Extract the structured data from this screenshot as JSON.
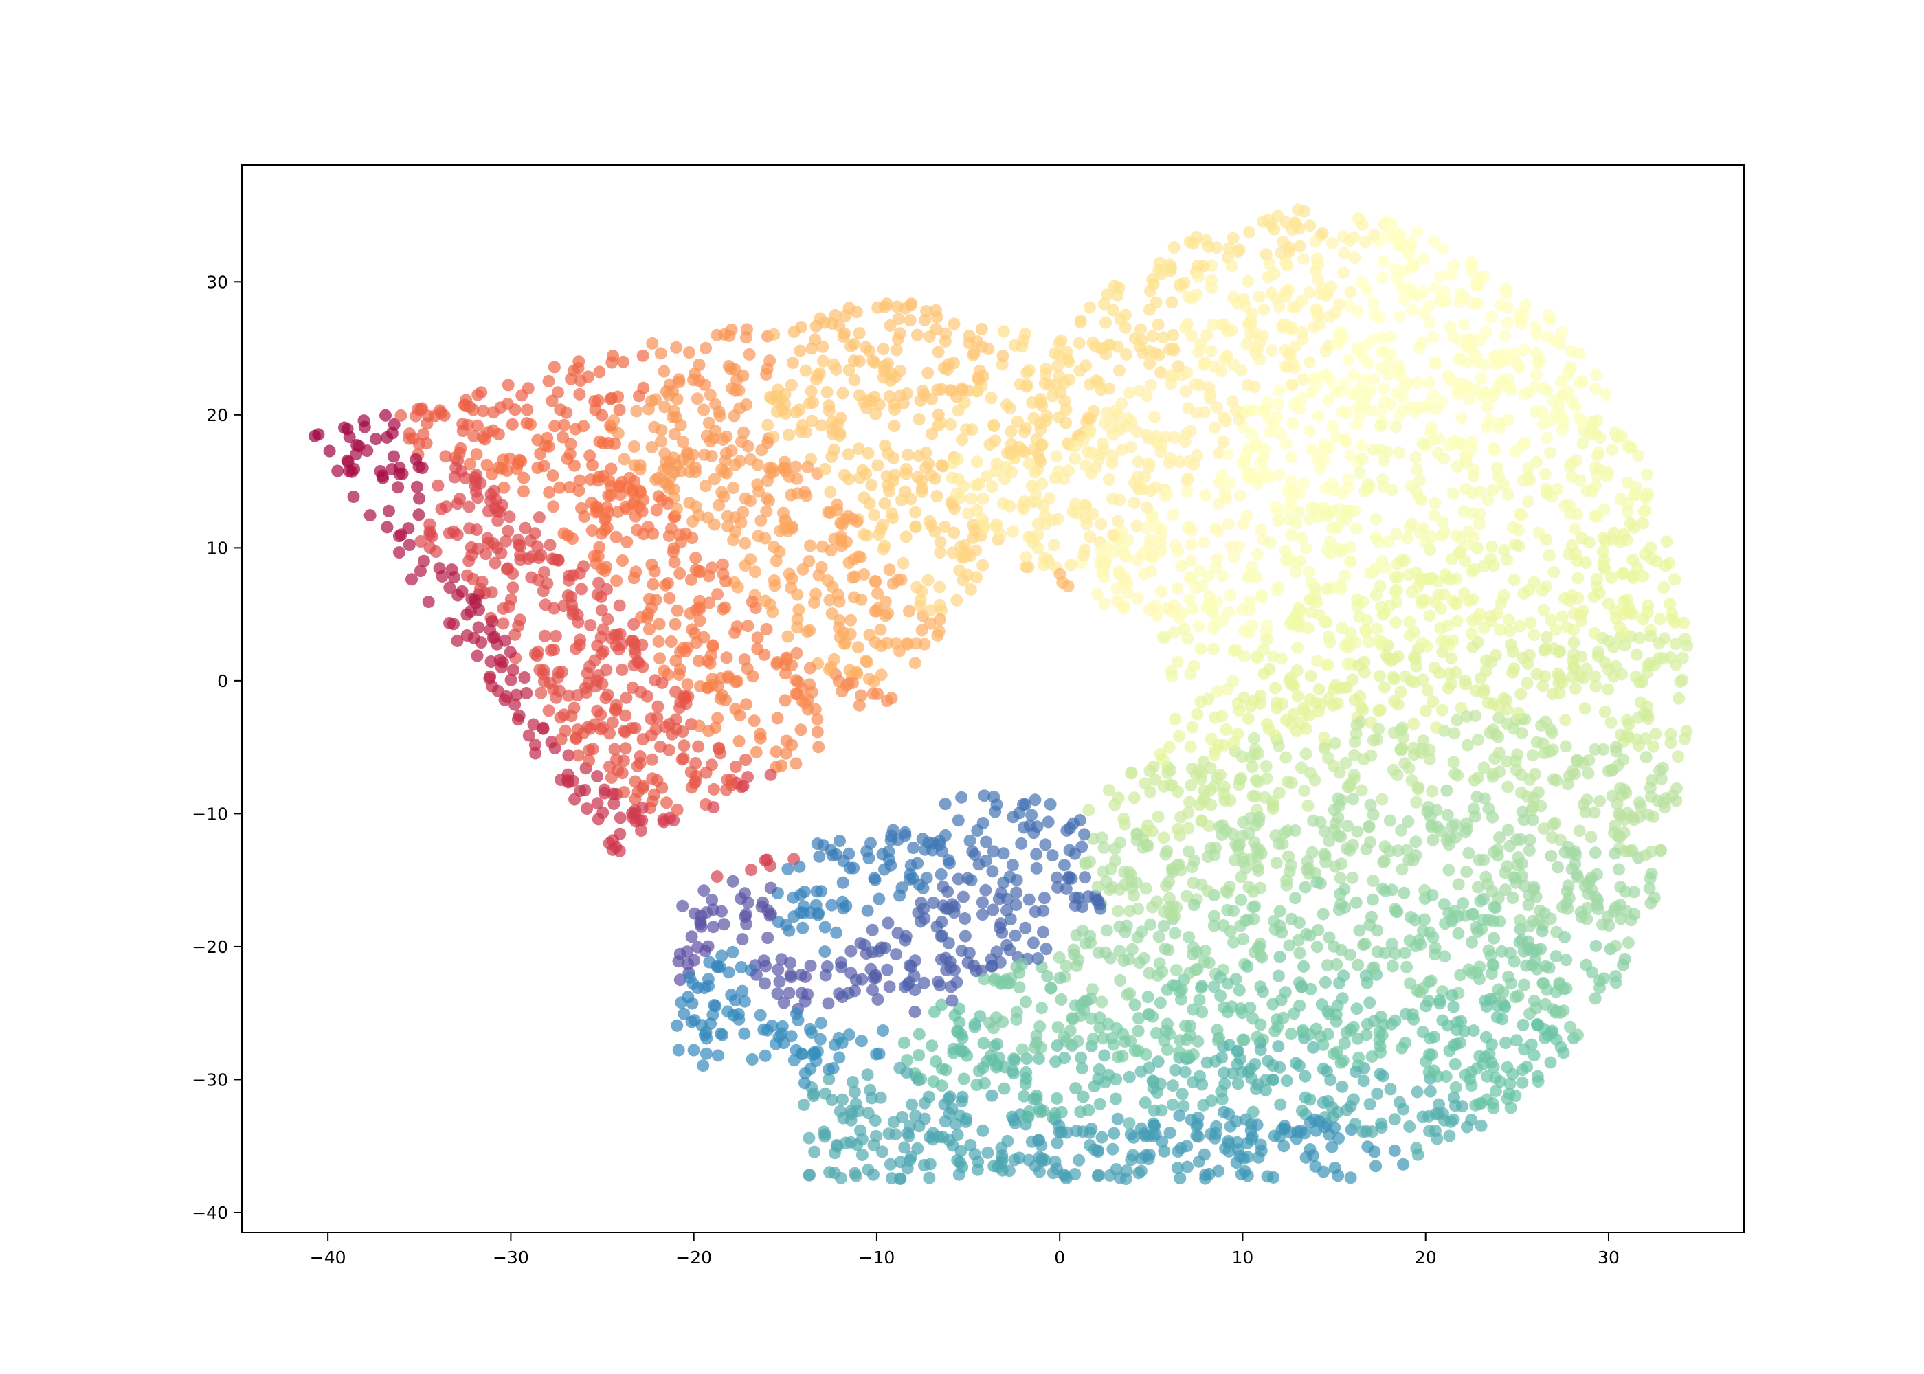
{
  "chart_data": {
    "type": "scatter",
    "title": "",
    "xlabel": "",
    "ylabel": "",
    "xlim": [
      -44.7,
      37.4
    ],
    "ylim": [
      -41.5,
      38.8
    ],
    "xticks": [
      -40,
      -30,
      -20,
      -10,
      0,
      10,
      20,
      30
    ],
    "yticks": [
      -40,
      -30,
      -20,
      -10,
      0,
      10,
      20,
      30
    ],
    "xtick_labels": [
      "−40",
      "−30",
      "−20",
      "−10",
      "0",
      "10",
      "20",
      "30"
    ],
    "ytick_labels": [
      "−40",
      "−30",
      "−20",
      "−10",
      "0",
      "10",
      "20",
      "30"
    ],
    "grid": false,
    "legend": "none",
    "marker_alpha": 0.7,
    "colormap": "Spectral",
    "colormap_stops": [
      "#9e0142",
      "#d53e4f",
      "#f46d43",
      "#fdae61",
      "#fee08b",
      "#ffffbf",
      "#e6f598",
      "#abdda4",
      "#66c2a5",
      "#3288bd",
      "#5e4fa2"
    ],
    "point_count": 5000,
    "point_regions_note_omitted": true,
    "series": [
      {
        "values_by_color_order": [
          [
            -40.5,
            18.5
          ],
          [
            -38.5,
            19.5
          ],
          [
            -39.0,
            16.0
          ],
          [
            -37.0,
            13.0
          ],
          [
            -38.0,
            10.0
          ],
          [
            -35.5,
            6.0
          ],
          [
            -34.5,
            2.0
          ],
          [
            -33.0,
            -2.0
          ],
          [
            -31.5,
            -6.0
          ],
          [
            -29.0,
            -9.0
          ],
          [
            -26.5,
            -11.5
          ],
          [
            -24.0,
            -14.0
          ],
          [
            -21.5,
            -13.0
          ],
          [
            -18.5,
            -12.0
          ],
          [
            -16.0,
            -9.5
          ],
          [
            -33.0,
            12.0
          ],
          [
            -30.0,
            10.0
          ],
          [
            -27.0,
            6.0
          ],
          [
            -25.0,
            2.0
          ],
          [
            -23.0,
            -3.0
          ],
          [
            -20.0,
            -7.0
          ],
          [
            -35.0,
            21.0
          ],
          [
            -31.0,
            22.0
          ],
          [
            -27.5,
            23.5
          ],
          [
            -24.0,
            25.0
          ],
          [
            -28.0,
            16.0
          ],
          [
            -25.0,
            12.0
          ],
          [
            -22.0,
            8.0
          ],
          [
            -19.5,
            3.0
          ],
          [
            -17.0,
            -2.0
          ],
          [
            -14.0,
            -5.0
          ],
          [
            -12.0,
            -3.0
          ],
          [
            -21.0,
            25.5
          ],
          [
            -18.0,
            27.0
          ],
          [
            -20.0,
            18.0
          ],
          [
            -17.0,
            14.0
          ],
          [
            -14.5,
            10.0
          ],
          [
            -11.5,
            6.0
          ],
          [
            -9.0,
            2.0
          ],
          [
            -6.0,
            1.0
          ],
          [
            -2.0,
            5.0
          ],
          [
            -15.0,
            28.0
          ],
          [
            -12.0,
            28.5
          ],
          [
            -9.0,
            27.0
          ],
          [
            -7.0,
            24.0
          ],
          [
            -12.0,
            20.0
          ],
          [
            -9.0,
            16.0
          ],
          [
            -7.0,
            12.0
          ],
          [
            -5.0,
            8.0
          ],
          [
            -2.5,
            20.0
          ],
          [
            1.0,
            25.0
          ],
          [
            3.0,
            29.0
          ],
          [
            6.0,
            33.0
          ],
          [
            9.0,
            34.0
          ],
          [
            -4.0,
            14.0
          ],
          [
            0.0,
            12.0
          ],
          [
            3.0,
            15.0
          ],
          [
            6.0,
            18.0
          ],
          [
            10.0,
            29.0
          ],
          [
            14.0,
            28.0
          ],
          [
            4.0,
            8.0
          ],
          [
            8.0,
            12.0
          ],
          [
            12.0,
            16.0
          ],
          [
            17.0,
            27.0
          ],
          [
            21.0,
            24.0
          ],
          [
            24.0,
            20.0
          ],
          [
            10.0,
            6.0
          ],
          [
            15.0,
            10.0
          ],
          [
            20.0,
            14.0
          ],
          [
            27.0,
            15.0
          ],
          [
            8.0,
            1.0
          ],
          [
            14.0,
            4.0
          ],
          [
            20.0,
            6.0
          ],
          [
            26.0,
            7.0
          ],
          [
            31.0,
            7.0
          ],
          [
            7.0,
            -3.0
          ],
          [
            13.0,
            -2.0
          ],
          [
            19.0,
            -1.0
          ],
          [
            25.0,
            0.0
          ],
          [
            32.0,
            0.0
          ],
          [
            34.0,
            -1.5
          ],
          [
            7.0,
            -9.0
          ],
          [
            12.0,
            -7.0
          ],
          [
            18.0,
            -6.0
          ],
          [
            24.0,
            -5.0
          ],
          [
            30.0,
            -9.0
          ],
          [
            5.0,
            -15.0
          ],
          [
            10.0,
            -13.0
          ],
          [
            16.0,
            -12.0
          ],
          [
            22.0,
            -12.0
          ],
          [
            28.0,
            -16.0
          ],
          [
            3.0,
            -21.0
          ],
          [
            9.0,
            -19.0
          ],
          [
            15.0,
            -18.0
          ],
          [
            21.0,
            -20.0
          ],
          [
            26.0,
            -22.0
          ],
          [
            -1.0,
            -25.0
          ],
          [
            5.0,
            -26.0
          ],
          [
            11.0,
            -24.0
          ],
          [
            17.0,
            -26.0
          ],
          [
            23.0,
            -27.0
          ],
          [
            -6.0,
            -28.0
          ],
          [
            0.0,
            -30.0
          ],
          [
            6.0,
            -31.0
          ],
          [
            12.0,
            -30.0
          ],
          [
            17.0,
            -32.0
          ],
          [
            -10.0,
            -31.0
          ],
          [
            -5.0,
            -34.0
          ],
          [
            1.0,
            -35.5
          ],
          [
            7.0,
            -34.0
          ],
          [
            11.0,
            -37.0
          ],
          [
            15.0,
            -35.5
          ],
          [
            -12.0,
            -27.0
          ],
          [
            -16.0,
            -26.0
          ],
          [
            -19.0,
            -22.0
          ],
          [
            -14.0,
            -18.0
          ],
          [
            -10.0,
            -14.0
          ],
          [
            -7.0,
            -12.0
          ],
          [
            -4.0,
            -9.5
          ],
          [
            -3.0,
            -13.0
          ],
          [
            -1.0,
            -17.0
          ],
          [
            -5.0,
            -18.0
          ],
          [
            -8.0,
            -21.0
          ],
          [
            -11.0,
            -23.0
          ],
          [
            -15.0,
            -23.0
          ],
          [
            -17.0,
            -18.0
          ],
          [
            -20.0,
            -21.0
          ]
        ]
      }
    ]
  }
}
